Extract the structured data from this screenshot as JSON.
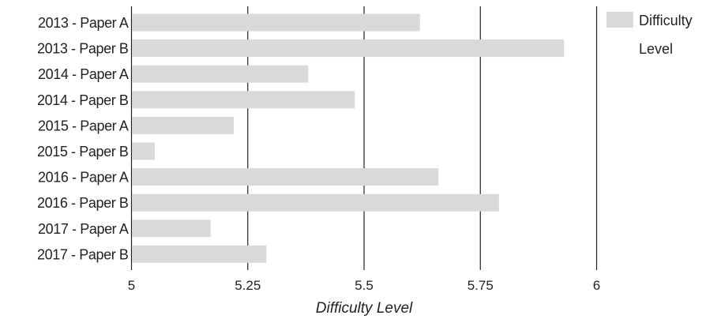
{
  "chart_data": {
    "type": "bar",
    "orientation": "horizontal",
    "categories": [
      "2013 - Paper A",
      "2013 - Paper B",
      "2014 - Paper A",
      "2014 - Paper B",
      "2015 - Paper A",
      "2015 - Paper B",
      "2016 - Paper A",
      "2016 - Paper B",
      "2017 - Paper A",
      "2017 - Paper B"
    ],
    "series": [
      {
        "name": "Difficulty Level",
        "values": [
          5.62,
          5.93,
          5.38,
          5.48,
          5.22,
          5.05,
          5.66,
          5.79,
          5.17,
          5.29
        ],
        "color": "#d9d9d9"
      }
    ],
    "xlabel": "Difficulty Level",
    "ylabel": "",
    "xlim": [
      5,
      6
    ],
    "xticks": [
      5,
      5.25,
      5.5,
      5.75,
      6
    ],
    "xtick_labels": [
      "5",
      "5.25",
      "5.5",
      "5.75",
      "6"
    ],
    "grid": true,
    "legend": {
      "position": "top-right",
      "lines": [
        "Difficulty",
        "Level"
      ]
    }
  }
}
